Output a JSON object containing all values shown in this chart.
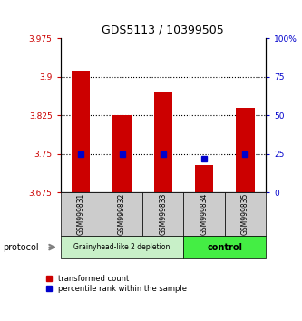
{
  "title": "GDS5113 / 10399505",
  "samples": [
    "GSM999831",
    "GSM999832",
    "GSM999833",
    "GSM999834",
    "GSM999835"
  ],
  "red_values": [
    3.912,
    3.825,
    3.872,
    3.728,
    3.84
  ],
  "blue_values_pct": [
    25,
    25,
    25,
    22,
    25
  ],
  "ymin": 3.675,
  "ymax": 3.975,
  "yticks_left": [
    3.675,
    3.75,
    3.825,
    3.9,
    3.975
  ],
  "yticks_right_pct": [
    0,
    25,
    50,
    75,
    100
  ],
  "group1_label": "Grainyhead-like 2 depletion",
  "group2_label": "control",
  "group1_indices": [
    0,
    1,
    2
  ],
  "group2_indices": [
    3,
    4
  ],
  "bar_color": "#cc0000",
  "marker_color": "#0000cc",
  "group1_bg": "#c8f0c8",
  "group2_bg": "#44ee44",
  "sample_bg": "#cccccc",
  "protocol_label": "protocol",
  "legend_red": "transformed count",
  "legend_blue": "percentile rank within the sample"
}
